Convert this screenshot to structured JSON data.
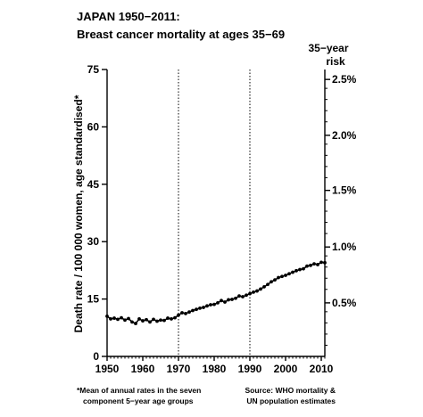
{
  "chart_data": {
    "type": "line",
    "title": "JAPAN 1950−2011:",
    "subtitle": "Breast cancer mortality at ages 35−69",
    "ylabel": "Death rate / 100 000 women, age standardised*",
    "right_axis_title": [
      "35−year",
      "risk"
    ],
    "xlim": [
      1950,
      2011
    ],
    "ylim": [
      0,
      75
    ],
    "x_ticks": [
      "1950",
      "1960",
      "1970",
      "1980",
      "1990",
      "2000",
      "2010"
    ],
    "y_ticks": [
      "0",
      "15",
      "30",
      "45",
      "60",
      "75"
    ],
    "right_ticks": [
      {
        "label": "0.5%",
        "y": 14.0
      },
      {
        "label": "1.0%",
        "y": 28.6
      },
      {
        "label": "1.5%",
        "y": 43.4
      },
      {
        "label": "2.0%",
        "y": 57.8
      },
      {
        "label": "2.5%",
        "y": 72.4
      }
    ],
    "reference_lines_x": [
      1970,
      1990
    ],
    "grid": false,
    "legend": "none",
    "series": [
      {
        "x": [
          1950,
          1951,
          1952,
          1953,
          1954,
          1955,
          1956,
          1957,
          1958,
          1959,
          1960,
          1961,
          1962,
          1963,
          1964,
          1965,
          1966,
          1967,
          1968,
          1969,
          1970,
          1971,
          1972,
          1973,
          1974,
          1975,
          1976,
          1977,
          1978,
          1979,
          1980,
          1981,
          1982,
          1983,
          1984,
          1985,
          1986,
          1987,
          1988,
          1989,
          1990,
          1991,
          1992,
          1993,
          1994,
          1995,
          1996,
          1997,
          1998,
          1999,
          2000,
          2001,
          2002,
          2003,
          2004,
          2005,
          2006,
          2007,
          2008,
          2009,
          2010,
          2011
        ],
        "values": [
          10.5,
          9.8,
          10.0,
          9.7,
          10.1,
          9.5,
          9.9,
          9.0,
          8.6,
          9.8,
          9.3,
          9.6,
          9.0,
          9.7,
          9.2,
          9.5,
          9.4,
          10.0,
          9.8,
          10.1,
          10.8,
          11.4,
          11.2,
          11.6,
          12.0,
          12.3,
          12.6,
          12.8,
          13.2,
          13.5,
          13.6,
          14.0,
          14.6,
          14.2,
          14.8,
          14.9,
          15.2,
          15.8,
          15.6,
          16.0,
          16.4,
          16.8,
          17.1,
          17.6,
          18.2,
          18.8,
          19.5,
          20.0,
          20.6,
          20.9,
          21.2,
          21.6,
          22.0,
          22.4,
          22.7,
          22.9,
          23.6,
          23.8,
          24.2,
          24.0,
          24.6,
          24.5
        ],
        "color": "#000000"
      }
    ],
    "footnote_left": [
      "*Mean of annual rates in the seven",
      "component 5−year age groups"
    ],
    "footnote_right": [
      "Source: WHO mortality &",
      "UN population estimates"
    ]
  }
}
